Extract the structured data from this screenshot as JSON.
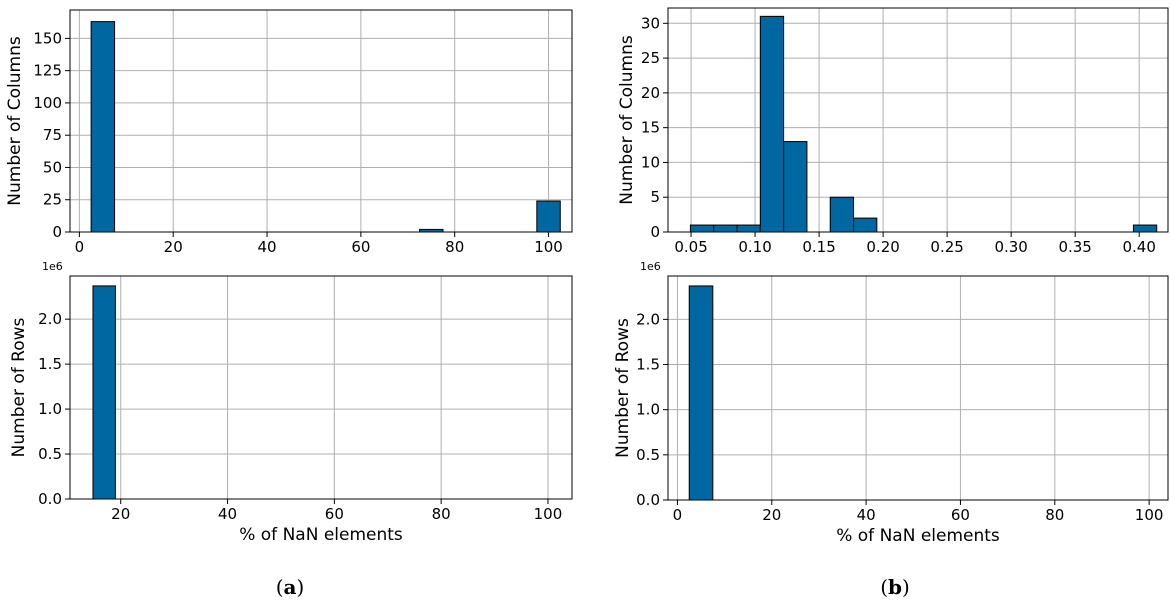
{
  "bar_color": "#0067a0",
  "captions": [
    {
      "open": "(",
      "letter": "a",
      "close": ")"
    },
    {
      "open": "(",
      "letter": "b",
      "close": ")"
    }
  ],
  "chart_data": [
    {
      "type": "bar",
      "panel": "a-top",
      "ylabel": "Number of Columns",
      "xlabel": "",
      "xlim": [
        -2,
        105
      ],
      "ylim": [
        0,
        172
      ],
      "xticks": [
        0,
        20,
        40,
        60,
        80,
        100
      ],
      "yticks": [
        0,
        25,
        50,
        75,
        100,
        125,
        150
      ],
      "grid": true,
      "bins": [
        {
          "x0": 2.5,
          "x1": 7.5,
          "value": 163
        },
        {
          "x0": 72.5,
          "x1": 77.5,
          "value": 2
        },
        {
          "x0": 97.5,
          "x1": 102.5,
          "value": 24
        }
      ]
    },
    {
      "type": "bar",
      "panel": "b-top",
      "ylabel": "Number of Columns",
      "xlabel": "",
      "xlim": [
        0.032,
        0.4225
      ],
      "ylim": [
        0,
        32.2
      ],
      "xticks": [
        "0.05",
        "0.10",
        "0.15",
        "0.20",
        "0.25",
        "0.30",
        "0.35",
        "0.40"
      ],
      "yticks": [
        0,
        5,
        10,
        15,
        20,
        25,
        30
      ],
      "grid": true,
      "bins": [
        {
          "x0": 0.0495,
          "x1": 0.0677,
          "value": 1
        },
        {
          "x0": 0.0677,
          "x1": 0.0859,
          "value": 1
        },
        {
          "x0": 0.0859,
          "x1": 0.1041,
          "value": 1
        },
        {
          "x0": 0.1041,
          "x1": 0.1223,
          "value": 31
        },
        {
          "x0": 0.1223,
          "x1": 0.1405,
          "value": 13
        },
        {
          "x0": 0.1405,
          "x1": 0.1587,
          "value": 0
        },
        {
          "x0": 0.1587,
          "x1": 0.1769,
          "value": 5
        },
        {
          "x0": 0.1769,
          "x1": 0.1951,
          "value": 2
        },
        {
          "x0": 0.3955,
          "x1": 0.4137,
          "value": 1
        }
      ]
    },
    {
      "type": "bar",
      "panel": "a-bottom",
      "ylabel": "Number of Rows",
      "xlabel": "% of NaN elements",
      "offset_text": "1e6",
      "xlim": [
        10.5,
        104.5
      ],
      "ylim": [
        0,
        2.48
      ],
      "xticks": [
        20,
        40,
        60,
        80,
        100
      ],
      "yticks": [
        "0.0",
        "0.5",
        "1.0",
        "1.5",
        "2.0"
      ],
      "grid": true,
      "bins": [
        {
          "x0": 14.8,
          "x1": 19.0,
          "value": 2.37
        }
      ]
    },
    {
      "type": "bar",
      "panel": "b-bottom",
      "ylabel": "Number of Rows",
      "xlabel": "% of NaN elements",
      "offset_text": "1e6",
      "xlim": [
        -2,
        104
      ],
      "ylim": [
        0,
        2.48
      ],
      "xticks": [
        0,
        20,
        40,
        60,
        80,
        100
      ],
      "yticks": [
        "0.0",
        "0.5",
        "1.0",
        "1.5",
        "2.0"
      ],
      "grid": true,
      "bins": [
        {
          "x0": 2.5,
          "x1": 7.5,
          "value": 2.37
        }
      ]
    }
  ]
}
